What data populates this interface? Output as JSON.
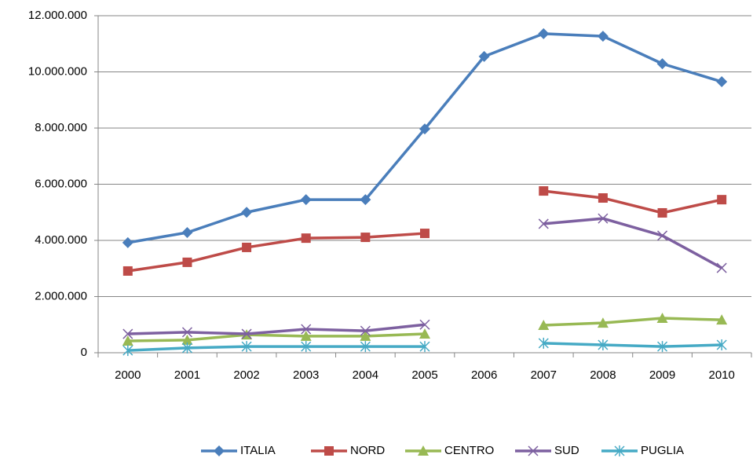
{
  "chart_data": {
    "type": "line",
    "categories": [
      "2000",
      "2001",
      "2002",
      "2003",
      "2004",
      "2005",
      "2006",
      "2007",
      "2008",
      "2009",
      "2010"
    ],
    "series": [
      {
        "name": "ITALIA",
        "color": "#4a7ebb",
        "marker": "diamond",
        "values": [
          3920000,
          4280000,
          5000000,
          5450000,
          5450000,
          7970000,
          10550000,
          11360000,
          11270000,
          10290000,
          9650000
        ]
      },
      {
        "name": "NORD",
        "color": "#be4b48",
        "marker": "square",
        "values": [
          2910000,
          3220000,
          3750000,
          4080000,
          4110000,
          4250000,
          null,
          5760000,
          5510000,
          4980000,
          5450000
        ]
      },
      {
        "name": "CENTRO",
        "color": "#98b954",
        "marker": "triangle",
        "values": [
          420000,
          450000,
          640000,
          590000,
          590000,
          670000,
          null,
          980000,
          1060000,
          1230000,
          1170000
        ]
      },
      {
        "name": "SUD",
        "color": "#7d60a0",
        "marker": "x",
        "values": [
          670000,
          730000,
          670000,
          840000,
          780000,
          1000000,
          null,
          4590000,
          4780000,
          4170000,
          3020000
        ]
      },
      {
        "name": "PUGLIA",
        "color": "#46aac5",
        "marker": "star",
        "values": [
          80000,
          170000,
          220000,
          220000,
          220000,
          220000,
          null,
          340000,
          280000,
          220000,
          280000
        ]
      }
    ],
    "ylim": [
      0,
      12000000
    ],
    "yticks": [
      0,
      {
        "value": 2000000,
        "label": "2.000.000"
      },
      {
        "value": 4000000,
        "label": "4.000.000"
      },
      {
        "value": 6000000,
        "label": "6.000.000"
      },
      {
        "value": 8000000,
        "label": "8.000.000"
      },
      {
        "value": 10000000,
        "label": "10.000.000"
      },
      {
        "value": 12000000,
        "label": "12.000.000"
      }
    ],
    "grid": true,
    "legend": "bottom"
  }
}
